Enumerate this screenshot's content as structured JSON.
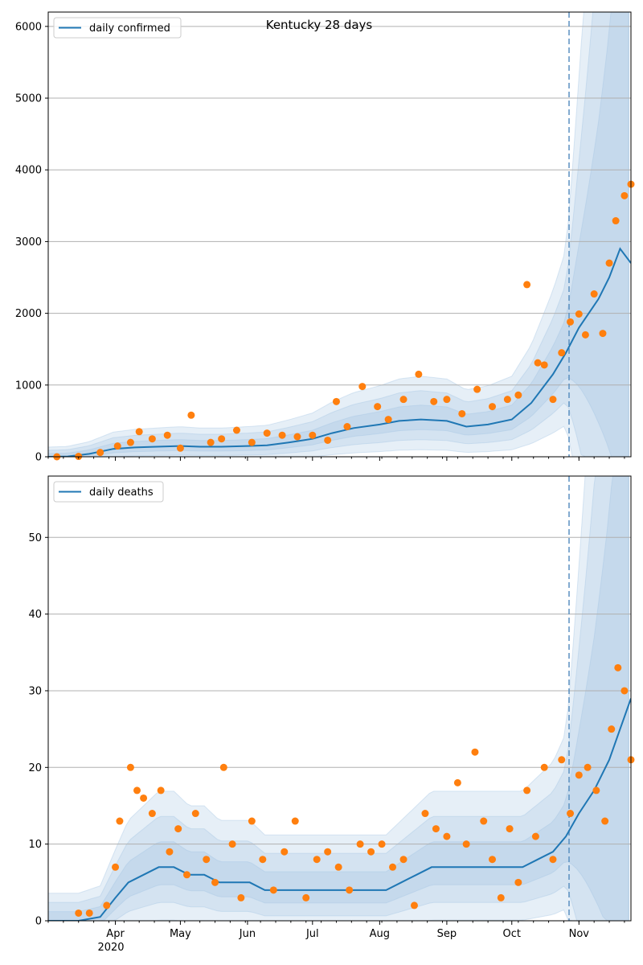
{
  "colors": {
    "line": "#1f77b4",
    "points": "#ff7f0e",
    "band": "#a6c5e3",
    "grid": "#b0b0b0",
    "forecast_line": "#5a8fc0"
  },
  "chart_data": [
    {
      "type": "line",
      "title": "Kentucky 28 days",
      "xlabel": "",
      "ylabel": "",
      "x_range": [
        "2020-03-01",
        "2020-11-25"
      ],
      "ylim": [
        0,
        6200
      ],
      "yticks": [
        0,
        1000,
        2000,
        3000,
        4000,
        5000,
        6000
      ],
      "grid": "horizontal",
      "legend_position": "top-left",
      "forecast_start": "2020-10-26",
      "series": [
        {
          "name": "daily confirmed",
          "kind": "line",
          "x": [
            "2020-03-01",
            "2020-03-10",
            "2020-03-20",
            "2020-03-31",
            "2020-04-10",
            "2020-04-20",
            "2020-05-01",
            "2020-05-10",
            "2020-05-20",
            "2020-06-01",
            "2020-06-10",
            "2020-06-20",
            "2020-07-01",
            "2020-07-10",
            "2020-07-20",
            "2020-08-01",
            "2020-08-10",
            "2020-08-20",
            "2020-09-01",
            "2020-09-10",
            "2020-09-20",
            "2020-10-01",
            "2020-10-10",
            "2020-10-20",
            "2020-10-26",
            "2020-11-01",
            "2020-11-10",
            "2020-11-15",
            "2020-11-20",
            "2020-11-25"
          ],
          "y": [
            0,
            5,
            40,
            110,
            130,
            140,
            150,
            140,
            140,
            150,
            160,
            200,
            250,
            330,
            400,
            450,
            500,
            520,
            500,
            420,
            450,
            520,
            750,
            1150,
            1450,
            1800,
            2200,
            2500,
            2900,
            2700
          ]
        },
        {
          "name": "",
          "kind": "points",
          "x": [
            "2020-03-05",
            "2020-03-15",
            "2020-03-25",
            "2020-04-02",
            "2020-04-08",
            "2020-04-12",
            "2020-04-18",
            "2020-04-25",
            "2020-05-01",
            "2020-05-06",
            "2020-05-15",
            "2020-05-20",
            "2020-05-27",
            "2020-06-03",
            "2020-06-10",
            "2020-06-17",
            "2020-06-24",
            "2020-07-01",
            "2020-07-08",
            "2020-07-12",
            "2020-07-17",
            "2020-07-24",
            "2020-07-31",
            "2020-08-05",
            "2020-08-12",
            "2020-08-19",
            "2020-08-26",
            "2020-09-01",
            "2020-09-08",
            "2020-09-15",
            "2020-09-22",
            "2020-09-29",
            "2020-10-04",
            "2020-10-08",
            "2020-10-13",
            "2020-10-16",
            "2020-10-20",
            "2020-10-24",
            "2020-10-28",
            "2020-11-01",
            "2020-11-04",
            "2020-11-08",
            "2020-11-12",
            "2020-11-15",
            "2020-11-18",
            "2020-11-22",
            "2020-11-25"
          ],
          "y": [
            0,
            5,
            60,
            150,
            200,
            350,
            250,
            300,
            120,
            580,
            200,
            250,
            370,
            200,
            330,
            300,
            280,
            300,
            230,
            770,
            420,
            980,
            700,
            520,
            800,
            1150,
            770,
            800,
            600,
            940,
            700,
            800,
            860,
            2400,
            1310,
            1280,
            800,
            1450,
            1880,
            1990,
            1700,
            2270,
            1720,
            2700,
            3290,
            3640,
            3800
          ]
        }
      ]
    },
    {
      "type": "line",
      "title": "",
      "xlabel": "",
      "ylabel": "",
      "x_range": [
        "2020-03-01",
        "2020-11-25"
      ],
      "ylim": [
        0,
        58
      ],
      "yticks": [
        0,
        10,
        20,
        30,
        40,
        50
      ],
      "xticks": [
        "Apr",
        "May",
        "Jun",
        "Jul",
        "Aug",
        "Sep",
        "Oct",
        "Nov"
      ],
      "xtick_dates": [
        "2020-04-01",
        "2020-05-01",
        "2020-06-01",
        "2020-07-01",
        "2020-08-01",
        "2020-09-01",
        "2020-10-01",
        "2020-11-01"
      ],
      "year_label": "2020",
      "grid": "horizontal",
      "legend_position": "top-left",
      "forecast_start": "2020-10-26",
      "series": [
        {
          "name": "daily deaths",
          "kind": "line",
          "x": [
            "2020-03-01",
            "2020-03-15",
            "2020-03-25",
            "2020-04-01",
            "2020-04-07",
            "2020-04-14",
            "2020-04-21",
            "2020-04-28",
            "2020-05-05",
            "2020-05-12",
            "2020-05-19",
            "2020-05-26",
            "2020-06-02",
            "2020-06-09",
            "2020-06-16",
            "2020-06-23",
            "2020-06-30",
            "2020-07-07",
            "2020-07-14",
            "2020-07-21",
            "2020-07-28",
            "2020-08-04",
            "2020-08-11",
            "2020-08-18",
            "2020-08-25",
            "2020-09-01",
            "2020-09-08",
            "2020-09-15",
            "2020-09-22",
            "2020-09-29",
            "2020-10-06",
            "2020-10-13",
            "2020-10-20",
            "2020-10-26",
            "2020-11-01",
            "2020-11-08",
            "2020-11-15",
            "2020-11-20",
            "2020-11-25"
          ],
          "y": [
            0,
            0,
            0.5,
            3,
            5,
            6,
            7,
            7,
            6,
            6,
            5,
            5,
            5,
            4,
            4,
            4,
            4,
            4,
            4,
            4,
            4,
            4,
            5,
            6,
            7,
            7,
            7,
            7,
            7,
            7,
            7,
            8,
            9,
            11,
            14,
            17,
            21,
            25,
            29
          ]
        },
        {
          "name": "",
          "kind": "points",
          "x": [
            "2020-03-15",
            "2020-03-20",
            "2020-03-28",
            "2020-04-01",
            "2020-04-03",
            "2020-04-08",
            "2020-04-11",
            "2020-04-14",
            "2020-04-18",
            "2020-04-22",
            "2020-04-26",
            "2020-04-30",
            "2020-05-04",
            "2020-05-08",
            "2020-05-13",
            "2020-05-17",
            "2020-05-21",
            "2020-05-25",
            "2020-05-29",
            "2020-06-03",
            "2020-06-08",
            "2020-06-13",
            "2020-06-18",
            "2020-06-23",
            "2020-06-28",
            "2020-07-03",
            "2020-07-08",
            "2020-07-13",
            "2020-07-18",
            "2020-07-23",
            "2020-07-28",
            "2020-08-02",
            "2020-08-07",
            "2020-08-12",
            "2020-08-17",
            "2020-08-22",
            "2020-08-27",
            "2020-09-01",
            "2020-09-06",
            "2020-09-10",
            "2020-09-14",
            "2020-09-18",
            "2020-09-22",
            "2020-09-26",
            "2020-09-30",
            "2020-10-04",
            "2020-10-08",
            "2020-10-12",
            "2020-10-16",
            "2020-10-20",
            "2020-10-24",
            "2020-10-28",
            "2020-11-01",
            "2020-11-05",
            "2020-11-09",
            "2020-11-13",
            "2020-11-16",
            "2020-11-19",
            "2020-11-22",
            "2020-11-25"
          ],
          "y": [
            1,
            1,
            2,
            7,
            13,
            20,
            17,
            16,
            14,
            17,
            9,
            12,
            6,
            14,
            8,
            5,
            20,
            10,
            3,
            13,
            8,
            4,
            9,
            13,
            3,
            8,
            9,
            7,
            4,
            10,
            9,
            10,
            7,
            8,
            2,
            14,
            12,
            11,
            18,
            10,
            22,
            13,
            8,
            3,
            12,
            5,
            17,
            11,
            20,
            8,
            21,
            14,
            19,
            20,
            17,
            13,
            25,
            33,
            30,
            21
          ]
        }
      ]
    }
  ]
}
